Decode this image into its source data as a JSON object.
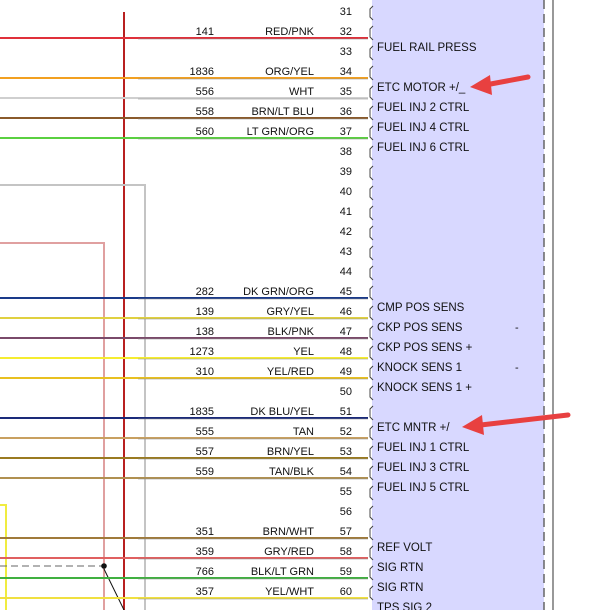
{
  "connector": {
    "panel_color": "#d8d8ff",
    "pins": [
      {
        "pin": "31",
        "circuit": "",
        "color": "",
        "function": "",
        "wire": "",
        "suffix": ""
      },
      {
        "pin": "32",
        "circuit": "141",
        "color": "RED/PNK",
        "function": "FUEL RAIL PRESS",
        "wire": "#e0303a",
        "suffix": ""
      },
      {
        "pin": "33",
        "circuit": "",
        "color": "",
        "function": "",
        "wire": "",
        "suffix": ""
      },
      {
        "pin": "34",
        "circuit": "1836",
        "color": "ORG/YEL",
        "function": "ETC MOTOR +/_",
        "wire": "#f2a020",
        "suffix": ""
      },
      {
        "pin": "35",
        "circuit": "556",
        "color": "WHT",
        "function": "FUEL INJ 2 CTRL",
        "wire": "#cfcfcf",
        "suffix": ""
      },
      {
        "pin": "36",
        "circuit": "558",
        "color": "BRN/LT BLU",
        "function": "FUEL INJ 4 CTRL",
        "wire": "#8a5a2b",
        "suffix": ""
      },
      {
        "pin": "37",
        "circuit": "560",
        "color": "LT GRN/ORG",
        "function": "FUEL INJ 6 CTRL",
        "wire": "#5ad040",
        "suffix": ""
      },
      {
        "pin": "38",
        "circuit": "",
        "color": "",
        "function": "",
        "wire": "",
        "suffix": ""
      },
      {
        "pin": "39",
        "circuit": "",
        "color": "",
        "function": "",
        "wire": "",
        "suffix": ""
      },
      {
        "pin": "40",
        "circuit": "",
        "color": "",
        "function": "",
        "wire": "",
        "suffix": ""
      },
      {
        "pin": "41",
        "circuit": "",
        "color": "",
        "function": "",
        "wire": "",
        "suffix": ""
      },
      {
        "pin": "42",
        "circuit": "",
        "color": "",
        "function": "",
        "wire": "",
        "suffix": ""
      },
      {
        "pin": "43",
        "circuit": "",
        "color": "",
        "function": "",
        "wire": "",
        "suffix": ""
      },
      {
        "pin": "44",
        "circuit": "",
        "color": "",
        "function": "",
        "wire": "",
        "suffix": ""
      },
      {
        "pin": "45",
        "circuit": "282",
        "color": "DK GRN/ORG",
        "function": "CMP POS SENS",
        "wire": "#1a3a8a",
        "suffix": ""
      },
      {
        "pin": "46",
        "circuit": "139",
        "color": "GRY/YEL",
        "function": "CKP POS SENS",
        "wire": "#e0d040",
        "suffix": "-"
      },
      {
        "pin": "47",
        "circuit": "138",
        "color": "BLK/PNK",
        "function": "CKP POS SENS +",
        "wire": "#7a4a6a",
        "suffix": ""
      },
      {
        "pin": "48",
        "circuit": "1273",
        "color": "YEL",
        "function": "KNOCK SENS 1",
        "wire": "#f5ec30",
        "suffix": "-"
      },
      {
        "pin": "49",
        "circuit": "310",
        "color": "YEL/RED",
        "function": "KNOCK SENS 1 +",
        "wire": "#e8c020",
        "suffix": ""
      },
      {
        "pin": "50",
        "circuit": "",
        "color": "",
        "function": "",
        "wire": "",
        "suffix": ""
      },
      {
        "pin": "51",
        "circuit": "1835",
        "color": "DK BLU/YEL",
        "function": "ETC MNTR +/",
        "wire": "#1a2a7a",
        "suffix": ""
      },
      {
        "pin": "52",
        "circuit": "555",
        "color": "TAN",
        "function": "FUEL INJ 1 CTRL",
        "wire": "#c8a060",
        "suffix": ""
      },
      {
        "pin": "53",
        "circuit": "557",
        "color": "BRN/YEL",
        "function": "FUEL INJ 3 CTRL",
        "wire": "#9a7a20",
        "suffix": ""
      },
      {
        "pin": "54",
        "circuit": "559",
        "color": "TAN/BLK",
        "function": "FUEL INJ 5 CTRL",
        "wire": "#b09050",
        "suffix": ""
      },
      {
        "pin": "55",
        "circuit": "",
        "color": "",
        "function": "",
        "wire": "",
        "suffix": ""
      },
      {
        "pin": "56",
        "circuit": "",
        "color": "",
        "function": "",
        "wire": "",
        "suffix": ""
      },
      {
        "pin": "57",
        "circuit": "351",
        "color": "BRN/WHT",
        "function": "REF VOLT",
        "wire": "#a07a3a",
        "suffix": ""
      },
      {
        "pin": "58",
        "circuit": "359",
        "color": "GRY/RED",
        "function": "SIG RTN",
        "wire": "#e06060",
        "suffix": ""
      },
      {
        "pin": "59",
        "circuit": "766",
        "color": "BLK/LT GRN",
        "function": "SIG RTN",
        "wire": "#40b040",
        "suffix": ""
      },
      {
        "pin": "60",
        "circuit": "357",
        "color": "YEL/WHT",
        "function": "TPS SIG 2",
        "wire": "#f0e040",
        "suffix": ""
      }
    ]
  },
  "callouts": [
    {
      "target_pin": "34",
      "arrow_color": "#e84040"
    },
    {
      "target_pin": "51",
      "arrow_color": "#e84040"
    }
  ]
}
